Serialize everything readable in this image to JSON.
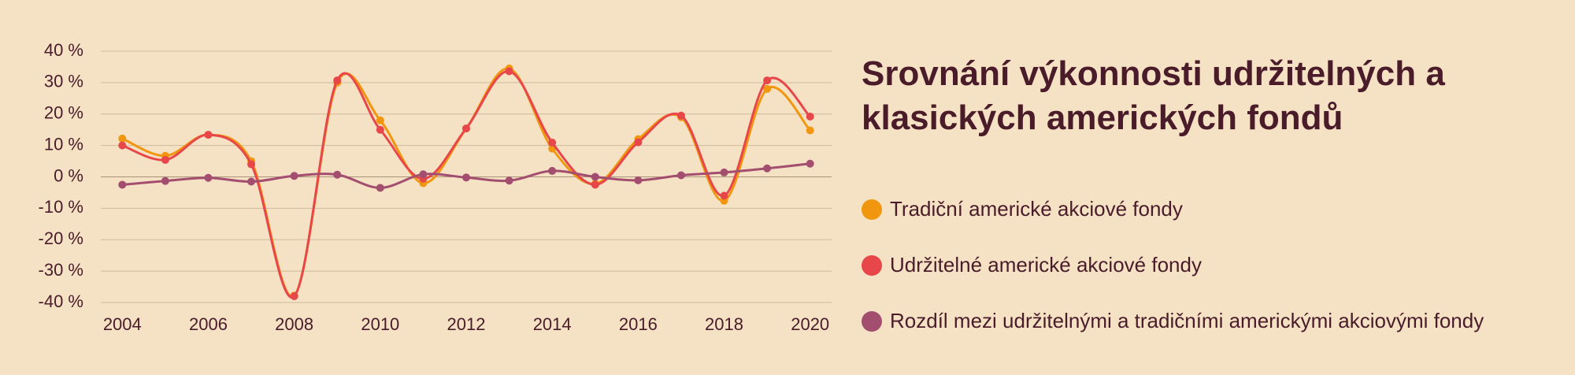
{
  "chart_data": {
    "type": "line",
    "title": "Srovnání výkonnosti udržitelných a klasických amerických fondů",
    "x": [
      2004,
      2005,
      2006,
      2007,
      2008,
      2009,
      2010,
      2011,
      2012,
      2013,
      2014,
      2015,
      2016,
      2017,
      2018,
      2019,
      2020
    ],
    "series": [
      {
        "name": "Tradiční americké akciové fondy",
        "color": "#f0960f",
        "values": [
          12.2,
          6.7,
          13.4,
          5,
          -37.8,
          30,
          18,
          -2,
          15.4,
          34.5,
          9,
          -2.2,
          12,
          19,
          -7.6,
          28,
          14.8
        ]
      },
      {
        "name": "Udržitelné americké akciové fondy",
        "color": "#e8474a",
        "values": [
          10,
          5.4,
          13.4,
          4,
          -38,
          30.7,
          15,
          -0.6,
          15.4,
          33.6,
          10.9,
          -2.5,
          11,
          19.5,
          -6,
          30.7,
          19.2
        ]
      },
      {
        "name": "Rozdíl mezi udržitelnými a tradičními americkými akciovými fondy",
        "color": "#a34e6f",
        "values": [
          -2.5,
          -1.3,
          -0.3,
          -1.5,
          0.3,
          0.7,
          -3.5,
          0.8,
          -0.2,
          -1.2,
          1.9,
          0,
          -1.1,
          0.5,
          1.4,
          2.7,
          4.2
        ]
      }
    ],
    "xlim": [
      2003.5,
      2020.5
    ],
    "xticks": [
      2004,
      2006,
      2008,
      2010,
      2012,
      2014,
      2016,
      2018,
      2020
    ],
    "ylim": [
      -40,
      40
    ],
    "yticks": [
      {
        "value": -40,
        "label": "-40 %"
      },
      {
        "value": -30,
        "label": "-30 %"
      },
      {
        "value": -20,
        "label": "-20 %"
      },
      {
        "value": -10,
        "label": "-10 %"
      },
      {
        "value": 0,
        "label": "0 %"
      },
      {
        "value": 10,
        "label": "10 %"
      },
      {
        "value": 20,
        "label": "20 %"
      },
      {
        "value": 30,
        "label": "30 %"
      },
      {
        "value": 40,
        "label": "40 %"
      }
    ],
    "grid": true
  }
}
